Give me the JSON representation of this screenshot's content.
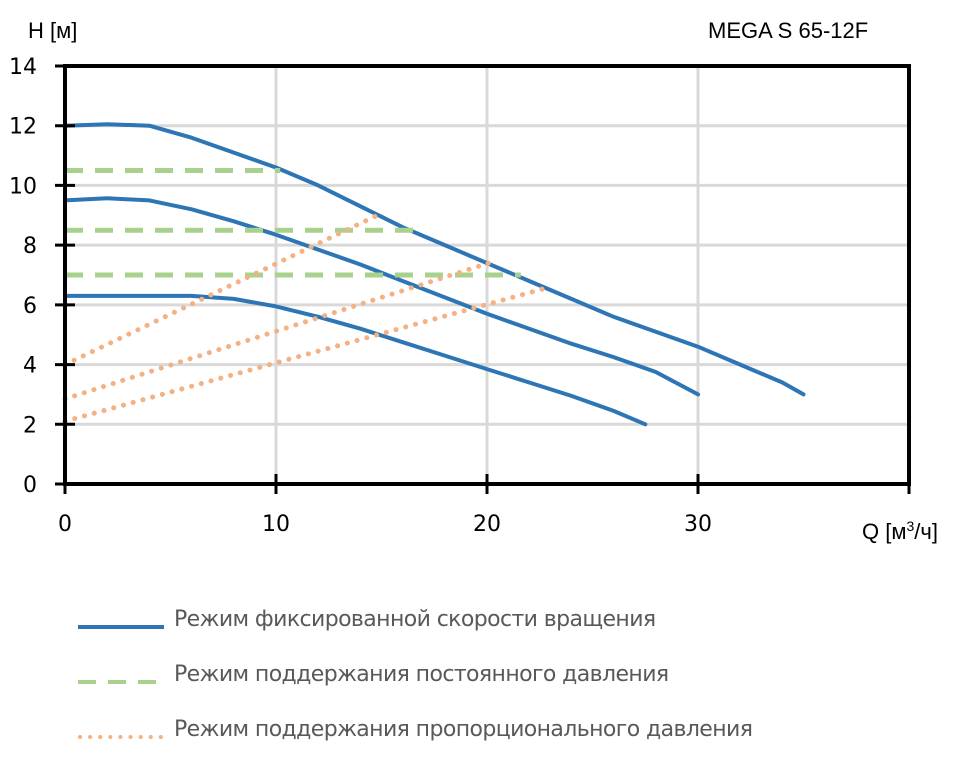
{
  "header": {
    "y_axis_title": "H [м]",
    "model_title": "MEGA S 65-12F",
    "x_axis_title": "Q [м³/ч]"
  },
  "legend": {
    "items": [
      {
        "label": "Режим фиксированной скорости вращения",
        "style": "solid",
        "color": "#2E75B6"
      },
      {
        "label": "Режим поддержания постоянного давления",
        "style": "dashed",
        "color": "#A9D18E"
      },
      {
        "label": "Режим поддержания пропорционального давления",
        "style": "dotted",
        "color": "#F4B183"
      }
    ]
  },
  "chart_data": {
    "type": "line",
    "title": "MEGA S 65-12F",
    "xlabel": "Q [м³/ч]",
    "ylabel": "H [м]",
    "xlim": [
      0,
      40
    ],
    "ylim": [
      0,
      14
    ],
    "x_ticks": [
      0,
      10,
      20,
      30
    ],
    "y_ticks": [
      0,
      2,
      4,
      6,
      8,
      10,
      12,
      14
    ],
    "grid": true,
    "legend_position": "bottom",
    "series": [
      {
        "name": "Режим фиксированной скорости вращения (max)",
        "group": "fixed-speed",
        "color": "#2E75B6",
        "style": "solid",
        "points": [
          [
            0,
            12.0
          ],
          [
            2,
            12.05
          ],
          [
            4,
            12.0
          ],
          [
            6,
            11.6
          ],
          [
            8,
            11.1
          ],
          [
            10,
            10.6
          ],
          [
            12,
            10.0
          ],
          [
            14,
            9.3
          ],
          [
            16,
            8.6
          ],
          [
            18,
            8.0
          ],
          [
            20,
            7.4
          ],
          [
            22,
            6.8
          ],
          [
            24,
            6.2
          ],
          [
            26,
            5.6
          ],
          [
            28,
            5.1
          ],
          [
            30,
            4.6
          ],
          [
            32,
            4.0
          ],
          [
            34,
            3.4
          ],
          [
            35,
            3.0
          ]
        ]
      },
      {
        "name": "Режим фиксированной скорости вращения (mid)",
        "group": "fixed-speed",
        "color": "#2E75B6",
        "style": "solid",
        "points": [
          [
            0,
            9.5
          ],
          [
            2,
            9.57
          ],
          [
            4,
            9.5
          ],
          [
            6,
            9.2
          ],
          [
            8,
            8.8
          ],
          [
            10,
            8.35
          ],
          [
            12,
            7.85
          ],
          [
            14,
            7.35
          ],
          [
            16,
            6.8
          ],
          [
            18,
            6.25
          ],
          [
            20,
            5.7
          ],
          [
            22,
            5.2
          ],
          [
            24,
            4.7
          ],
          [
            26,
            4.25
          ],
          [
            28,
            3.75
          ],
          [
            30,
            3.0
          ]
        ]
      },
      {
        "name": "Режим фиксированной скорости вращения (min)",
        "group": "fixed-speed",
        "color": "#2E75B6",
        "style": "solid",
        "points": [
          [
            0,
            6.3
          ],
          [
            2,
            6.3
          ],
          [
            4,
            6.3
          ],
          [
            6,
            6.3
          ],
          [
            8,
            6.2
          ],
          [
            10,
            5.95
          ],
          [
            12,
            5.6
          ],
          [
            14,
            5.2
          ],
          [
            16,
            4.75
          ],
          [
            18,
            4.3
          ],
          [
            20,
            3.85
          ],
          [
            22,
            3.4
          ],
          [
            24,
            2.95
          ],
          [
            26,
            2.45
          ],
          [
            27.5,
            2.0
          ]
        ]
      },
      {
        "name": "Режим поддержания постоянного давления (10.5 м)",
        "group": "constant-pressure",
        "color": "#A9D18E",
        "style": "dashed",
        "points": [
          [
            0,
            10.5
          ],
          [
            10.2,
            10.5
          ]
        ]
      },
      {
        "name": "Режим поддержания постоянного давления (8.5 м)",
        "group": "constant-pressure",
        "color": "#A9D18E",
        "style": "dashed",
        "points": [
          [
            0,
            8.5
          ],
          [
            16.8,
            8.5
          ]
        ]
      },
      {
        "name": "Режим поддержания постоянного давления (7.0 м)",
        "group": "constant-pressure",
        "color": "#A9D18E",
        "style": "dashed",
        "points": [
          [
            0,
            7.0
          ],
          [
            21.6,
            7.0
          ]
        ]
      },
      {
        "name": "Режим поддержания пропорционального давления (high)",
        "group": "proportional-pressure",
        "color": "#F4B183",
        "style": "dotted",
        "points": [
          [
            0,
            4.0
          ],
          [
            14.8,
            9.0
          ]
        ]
      },
      {
        "name": "Режим поддержания пропорционального давления (mid)",
        "group": "proportional-pressure",
        "color": "#F4B183",
        "style": "dotted",
        "points": [
          [
            0,
            2.85
          ],
          [
            20.3,
            7.45
          ]
        ]
      },
      {
        "name": "Режим поддержания пропорционального давления (low)",
        "group": "proportional-pressure",
        "color": "#F4B183",
        "style": "dotted",
        "points": [
          [
            0,
            2.1
          ],
          [
            23.0,
            6.6
          ]
        ]
      }
    ]
  }
}
